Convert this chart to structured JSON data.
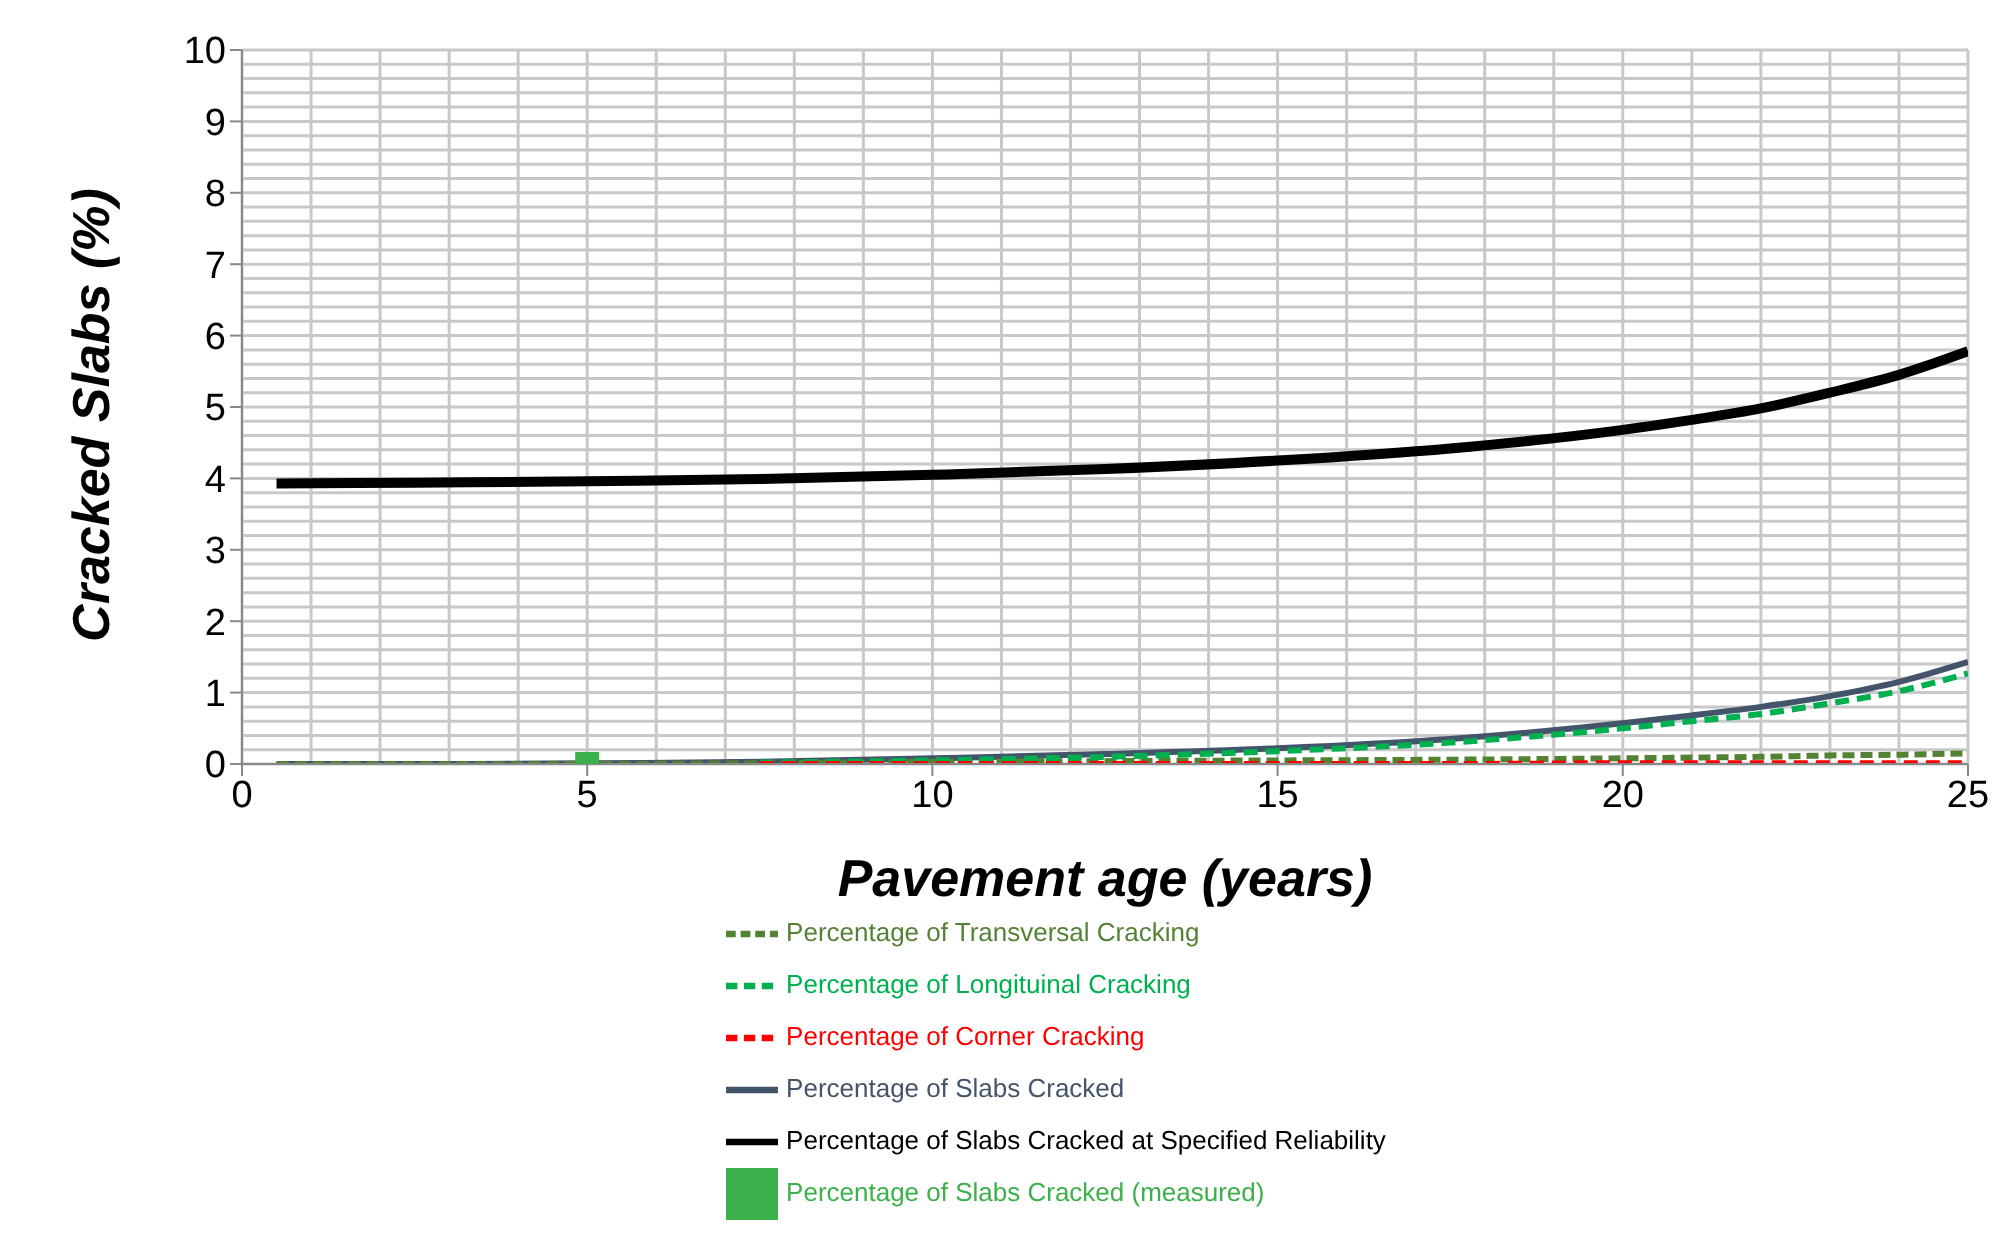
{
  "chart_data": {
    "type": "line",
    "xlabel": "Pavement age (years)",
    "ylabel": "Cracked Slabs (%)",
    "xlim": [
      0,
      25
    ],
    "xticks": [
      0,
      5,
      10,
      15,
      20,
      25
    ],
    "ylim": [
      0,
      10
    ],
    "yticks": [
      0,
      1,
      2,
      3,
      4,
      5,
      6,
      7,
      8,
      9,
      10
    ],
    "grid": true,
    "legend": "bottom",
    "x": [
      0.5,
      2.5,
      5,
      7.5,
      10,
      12.5,
      15,
      17.5,
      20,
      21,
      22,
      23,
      24,
      25
    ],
    "series": [
      {
        "name": "Percentage of Transversal Cracking",
        "color": "#548235",
        "line_style": "dashed",
        "marker": "none",
        "values": [
          0,
          0,
          0,
          0.01,
          0.03,
          0.04,
          0.05,
          0.06,
          0.08,
          0.09,
          0.1,
          0.12,
          0.13,
          0.15
        ]
      },
      {
        "name": "Percentage of  Longituinal Cracking",
        "color": "#00b050",
        "line_style": "dashed",
        "marker": "none",
        "values": [
          null,
          null,
          null,
          0.02,
          0.05,
          0.1,
          0.18,
          0.3,
          0.5,
          0.6,
          0.7,
          0.85,
          1.02,
          1.27
        ]
      },
      {
        "name": "Percentage of  Corner Cracking",
        "color": "#ff0000",
        "line_style": "dashed",
        "marker": "none",
        "values": [
          null,
          null,
          null,
          0,
          0,
          0,
          0,
          0,
          0.01,
          0.01,
          0.01,
          0.01,
          0.01,
          0.01
        ]
      },
      {
        "name": "Percentage of Slabs Cracked",
        "color": "#44546a",
        "line_style": "solid",
        "marker": "none",
        "values": [
          0,
          0,
          0.01,
          0.03,
          0.08,
          0.14,
          0.22,
          0.35,
          0.57,
          0.68,
          0.8,
          0.95,
          1.15,
          1.43
        ]
      },
      {
        "name": "Percentage of Slabs Cracked at Specified Reliability",
        "color": "#000000",
        "line_style": "solid",
        "marker": "none",
        "values": [
          3.93,
          3.94,
          3.96,
          3.99,
          4.05,
          4.13,
          4.25,
          4.42,
          4.68,
          4.82,
          4.98,
          5.2,
          5.45,
          5.78
        ]
      },
      {
        "name": "Percentage of Slabs Cracked (measured)",
        "type": "scatter",
        "color": "#3cb04a",
        "marker": "square",
        "x": [
          5
        ],
        "values": [
          0
        ]
      }
    ]
  }
}
